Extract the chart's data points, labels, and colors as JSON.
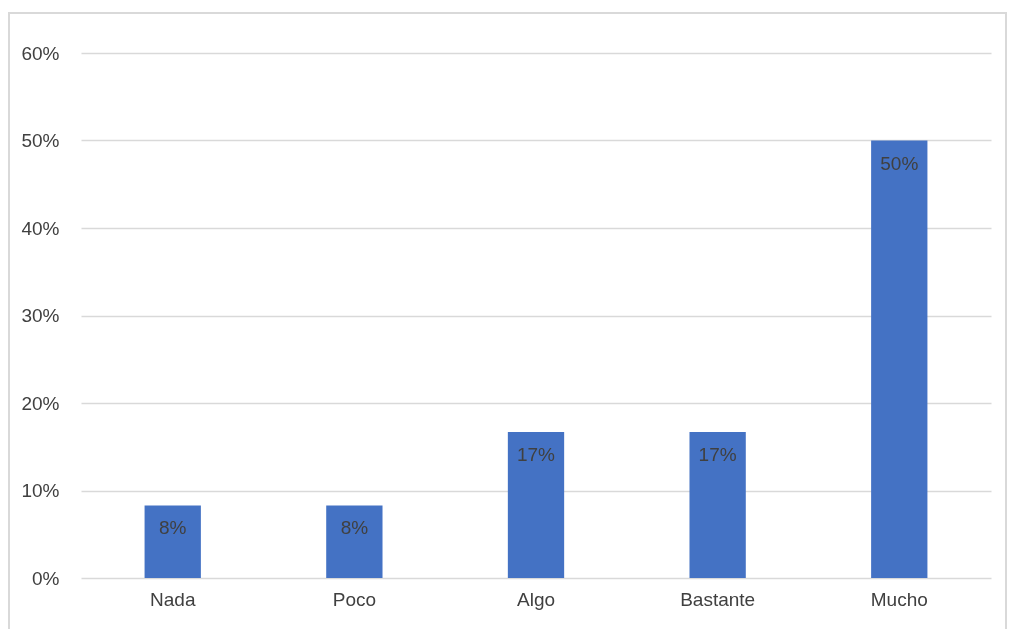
{
  "chart_data": {
    "type": "bar",
    "categories": [
      "Nada",
      "Poco",
      "Algo",
      "Bastante",
      "Mucho"
    ],
    "values": [
      8.3,
      8.3,
      16.7,
      16.7,
      50
    ],
    "value_labels": [
      "8%",
      "8%",
      "17%",
      "17%",
      "50%"
    ],
    "color": "#4472c4",
    "ylim": [
      0,
      60
    ],
    "yticks": [
      {
        "value": 0,
        "label": "0%"
      },
      {
        "value": 10,
        "label": "10%"
      },
      {
        "value": 20,
        "label": "20%"
      },
      {
        "value": 30,
        "label": "30%"
      },
      {
        "value": 40,
        "label": "40%"
      },
      {
        "value": 50,
        "label": "50%"
      },
      {
        "value": 60,
        "label": "60%"
      }
    ],
    "grid": "y"
  }
}
